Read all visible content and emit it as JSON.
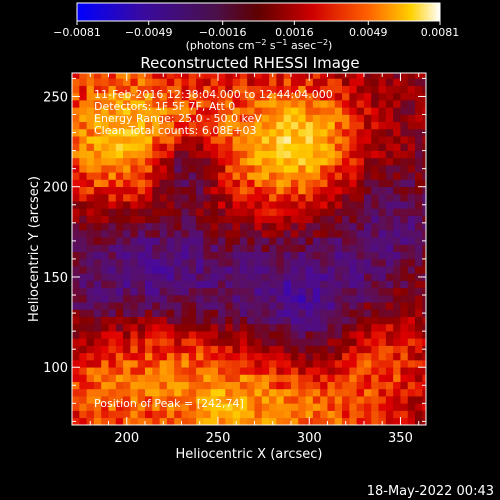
{
  "colorbar": {
    "ticks": [
      "−0.0081",
      "−0.0049",
      "−0.0016",
      "0.0016",
      "0.0049",
      "0.0081"
    ],
    "tick_values": [
      -0.0081,
      -0.0049,
      -0.0016,
      0.0016,
      0.0049,
      0.0081
    ],
    "unit_label": "(photons cm",
    "unit_exp1": "−2",
    "unit_mid": " s",
    "unit_exp2": "−1",
    "unit_end": " asec",
    "unit_exp3": "−2",
    "unit_close": ")"
  },
  "chart_data": {
    "type": "heatmap",
    "title": "Reconstructed RHESSI Image",
    "xlabel": "Heliocentric X (arcsec)",
    "ylabel": "Heliocentric Y (arcsec)",
    "xlim": [
      170,
      364
    ],
    "ylim": [
      68,
      263
    ],
    "xticks": [
      200,
      250,
      300,
      350
    ],
    "yticks": [
      100,
      150,
      200,
      250
    ],
    "xtick_labels": [
      "200",
      "250",
      "300",
      "350"
    ],
    "ytick_labels": [
      "100",
      "150",
      "200",
      "250"
    ],
    "zlim": [
      -0.0081,
      0.0081
    ],
    "colormap": [
      "#0000ff",
      "#4a0a9a",
      "#5a1060",
      "#800000",
      "#e00000",
      "#ff8000",
      "#ffd000",
      "#ffffff"
    ],
    "annotations": [
      "11-Feb-2016 12:38:04.000 to 12:44:04.000",
      "Detectors: 1F 5F 7F, Att 0",
      "Energy Range: 25.0 - 50.0 keV",
      "Clean    Total counts: 6.08E+03"
    ],
    "peak_label": "Position of Peak = [242,74]",
    "peak": [
      242,
      74
    ],
    "features": [
      {
        "x": 233,
        "y": 210,
        "sigma": 13,
        "amp": -0.005
      },
      {
        "x": 215,
        "y": 150,
        "sigma": 38,
        "amp": -0.0045
      },
      {
        "x": 300,
        "y": 130,
        "sigma": 30,
        "amp": -0.0048
      },
      {
        "x": 345,
        "y": 180,
        "sigma": 22,
        "amp": -0.0025
      },
      {
        "x": 195,
        "y": 215,
        "sigma": 28,
        "amp": 0.0045
      },
      {
        "x": 270,
        "y": 215,
        "sigma": 32,
        "amp": 0.004
      },
      {
        "x": 300,
        "y": 228,
        "sigma": 22,
        "amp": 0.0045
      },
      {
        "x": 200,
        "y": 245,
        "sigma": 30,
        "amp": 0.003
      },
      {
        "x": 250,
        "y": 85,
        "sigma": 30,
        "amp": 0.006
      },
      {
        "x": 185,
        "y": 90,
        "sigma": 24,
        "amp": 0.0042
      },
      {
        "x": 310,
        "y": 80,
        "sigma": 30,
        "amp": 0.004
      },
      {
        "x": 340,
        "y": 110,
        "sigma": 20,
        "amp": 0.003
      },
      {
        "x": 215,
        "y": 115,
        "sigma": 18,
        "amp": 0.0025
      }
    ]
  },
  "timestamp": "18-May-2022 00:43"
}
